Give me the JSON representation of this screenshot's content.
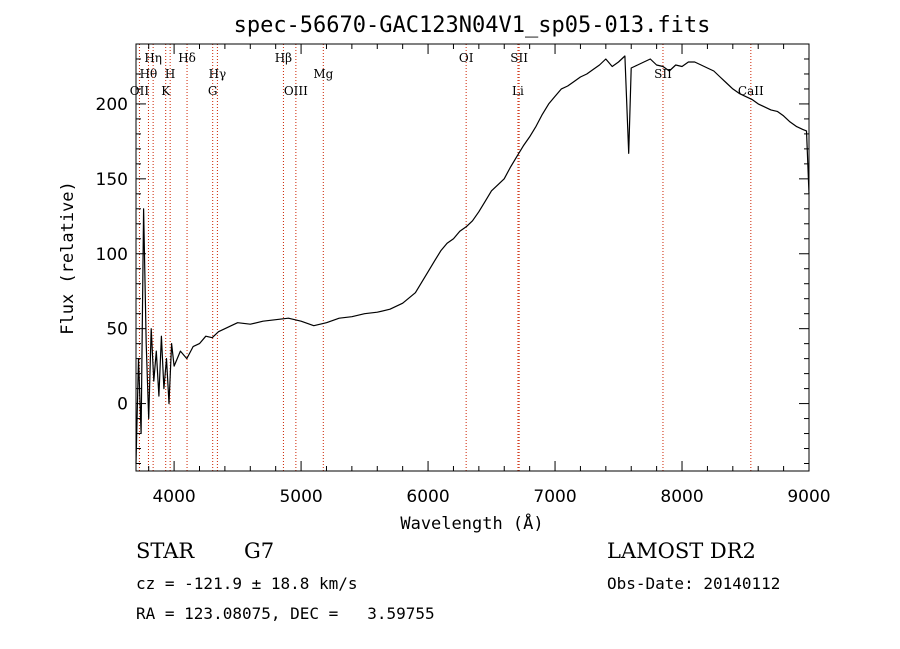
{
  "chart_data": {
    "type": "line",
    "title": "spec-56670-GAC123N04V1_sp05-013.fits",
    "xlabel": "Wavelength (Å)",
    "ylabel": "Flux (relative)",
    "xlim": [
      3700,
      9000
    ],
    "ylim": [
      -45,
      240
    ],
    "x_ticks": [
      4000,
      5000,
      6000,
      7000,
      8000,
      9000
    ],
    "y_ticks": [
      0,
      50,
      100,
      150,
      200
    ],
    "series": [
      {
        "x": [
          3700,
          3720,
          3740,
          3760,
          3780,
          3800,
          3820,
          3840,
          3860,
          3880,
          3900,
          3920,
          3940,
          3960,
          3980,
          4000,
          4050,
          4100,
          4150,
          4200,
          4250,
          4300,
          4350,
          4400,
          4450,
          4500,
          4600,
          4700,
          4800,
          4900,
          5000,
          5100,
          5200,
          5300,
          5400,
          5500,
          5600,
          5700,
          5800,
          5900,
          6000,
          6050,
          6100,
          6150,
          6200,
          6250,
          6300,
          6350,
          6400,
          6450,
          6500,
          6550,
          6600,
          6650,
          6700,
          6750,
          6800,
          6850,
          6900,
          6950,
          7000,
          7050,
          7100,
          7150,
          7200,
          7250,
          7300,
          7350,
          7400,
          7450,
          7500,
          7550,
          7580,
          7600,
          7650,
          7700,
          7750,
          7800,
          7850,
          7900,
          7950,
          8000,
          8050,
          8100,
          8150,
          8200,
          8250,
          8300,
          8350,
          8400,
          8450,
          8500,
          8550,
          8600,
          8650,
          8700,
          8750,
          8800,
          8850,
          8900,
          8950,
          8980,
          9000
        ],
        "y": [
          -40,
          30,
          -20,
          130,
          40,
          -10,
          50,
          15,
          35,
          5,
          45,
          10,
          30,
          0,
          40,
          25,
          35,
          30,
          38,
          40,
          45,
          44,
          48,
          50,
          52,
          54,
          53,
          55,
          56,
          57,
          55,
          52,
          54,
          57,
          58,
          60,
          61,
          63,
          67,
          74,
          88,
          95,
          102,
          107,
          110,
          115,
          118,
          122,
          128,
          135,
          142,
          146,
          150,
          158,
          165,
          172,
          178,
          185,
          193,
          200,
          205,
          210,
          212,
          215,
          218,
          220,
          223,
          226,
          230,
          225,
          228,
          232,
          167,
          224,
          226,
          228,
          230,
          226,
          225,
          222,
          226,
          225,
          228,
          228,
          226,
          224,
          222,
          218,
          214,
          210,
          207,
          205,
          203,
          200,
          198,
          196,
          195,
          192,
          188,
          185,
          183,
          182,
          140
        ]
      }
    ],
    "spectral_lines": [
      {
        "label": "OII",
        "wavelength": 3727,
        "row": 3
      },
      {
        "label": "Hθ",
        "wavelength": 3798,
        "row": 2
      },
      {
        "label": "Hη",
        "wavelength": 3835,
        "row": 1
      },
      {
        "label": "K",
        "wavelength": 3934,
        "row": 3
      },
      {
        "label": "H",
        "wavelength": 3969,
        "row": 2
      },
      {
        "label": "Hδ",
        "wavelength": 4102,
        "row": 1
      },
      {
        "label": "G",
        "wavelength": 4304,
        "row": 3
      },
      {
        "label": "Hγ",
        "wavelength": 4341,
        "row": 2
      },
      {
        "label": "Hβ",
        "wavelength": 4861,
        "row": 1
      },
      {
        "label": "OIII",
        "wavelength": 4959,
        "row": 3
      },
      {
        "label": "Mg",
        "wavelength": 5175,
        "row": 2
      },
      {
        "label": "OI",
        "wavelength": 6300,
        "row": 1
      },
      {
        "label": "Li",
        "wavelength": 6708,
        "row": 3
      },
      {
        "label": "SII",
        "wavelength": 6717,
        "row": 1
      },
      {
        "label": "SII",
        "wavelength": 7850,
        "row": 2
      },
      {
        "label": "CaII",
        "wavelength": 8542,
        "row": 3
      }
    ],
    "grid": false,
    "line_color": "#000000",
    "marker_color": "#cc2200"
  },
  "info": {
    "object_class": "STAR",
    "subclass": "G7",
    "survey": "LAMOST DR2",
    "redshift": "cz = -121.9 ± 18.8 km/s",
    "obs_date": "Obs-Date: 20140112",
    "coords": "RA = 123.08075, DEC =   3.59755"
  }
}
